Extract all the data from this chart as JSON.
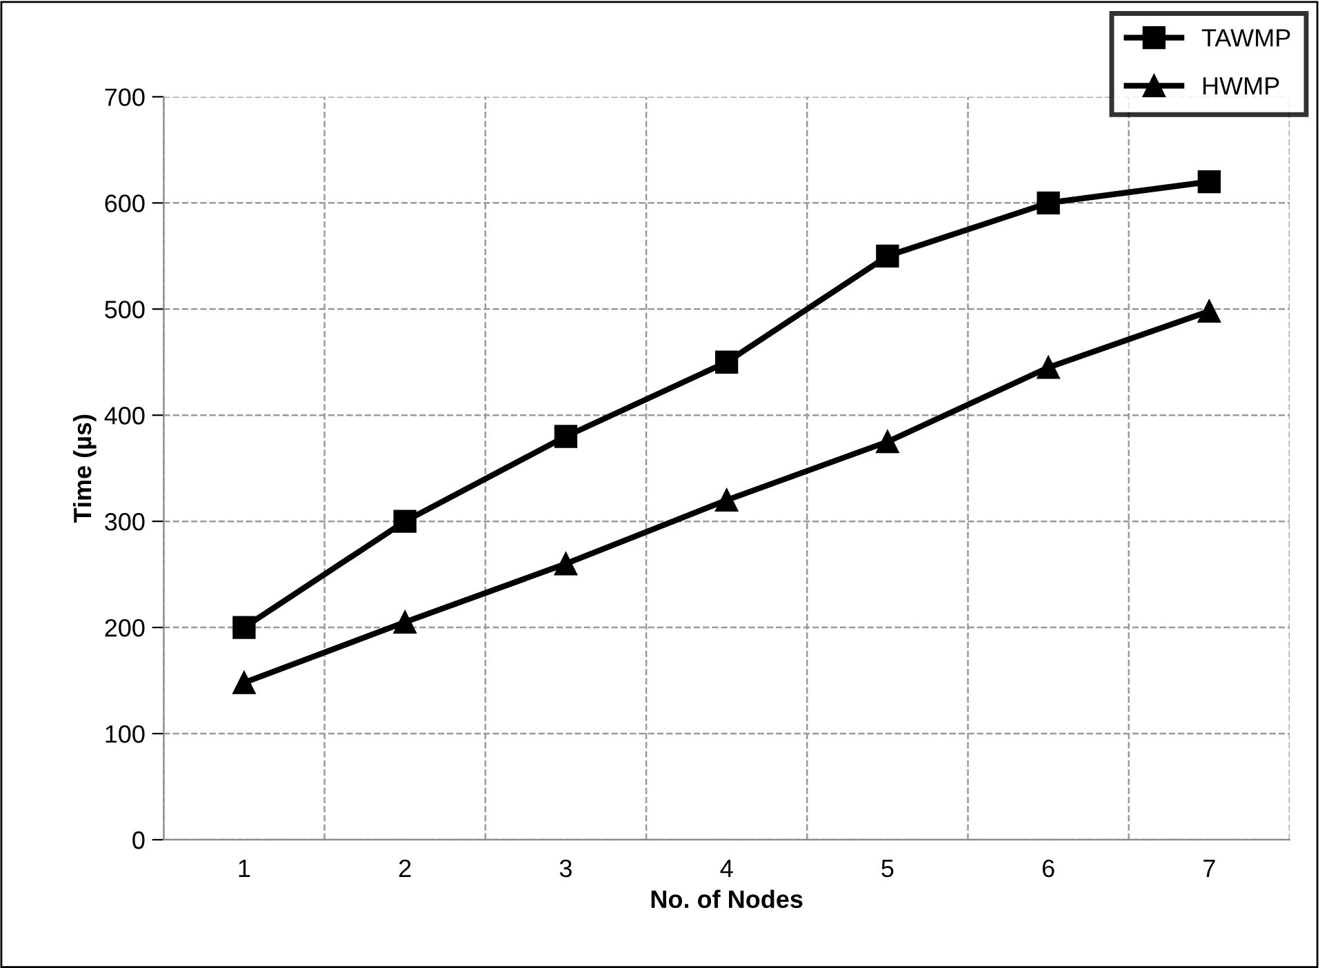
{
  "chart_data": {
    "type": "line",
    "xlabel": "No. of Nodes",
    "ylabel": "Time (µs)",
    "categories": [
      "1",
      "2",
      "3",
      "4",
      "5",
      "6",
      "7"
    ],
    "series": [
      {
        "name": "TAWMP",
        "color": "#000000",
        "marker": "square",
        "values": [
          200,
          300,
          380,
          450,
          550,
          600,
          620
        ]
      },
      {
        "name": "HWMP",
        "color": "#000000",
        "marker": "triangle",
        "values": [
          148,
          205,
          260,
          320,
          375,
          445,
          498
        ]
      }
    ],
    "ylim": [
      0,
      700
    ],
    "yticks": [
      0,
      100,
      200,
      300,
      400,
      500,
      600,
      700
    ],
    "grid": true,
    "legend": "top right",
    "line_style": "solid"
  }
}
